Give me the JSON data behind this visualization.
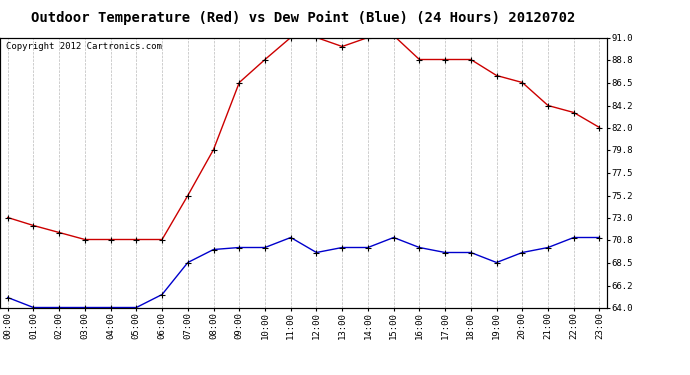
{
  "title": "Outdoor Temperature (Red) vs Dew Point (Blue) (24 Hours) 20120702",
  "copyright_text": "Copyright 2012 Cartronics.com",
  "hours": [
    "00:00",
    "01:00",
    "02:00",
    "03:00",
    "04:00",
    "05:00",
    "06:00",
    "07:00",
    "08:00",
    "09:00",
    "10:00",
    "11:00",
    "12:00",
    "13:00",
    "14:00",
    "15:00",
    "16:00",
    "17:00",
    "18:00",
    "19:00",
    "20:00",
    "21:00",
    "22:00",
    "23:00"
  ],
  "temp_red": [
    73.0,
    72.2,
    71.5,
    70.8,
    70.8,
    70.8,
    70.8,
    75.2,
    79.8,
    86.5,
    88.8,
    91.0,
    91.0,
    90.1,
    91.0,
    91.2,
    88.8,
    88.8,
    88.8,
    87.2,
    86.5,
    84.2,
    83.5,
    82.0
  ],
  "dew_blue": [
    65.0,
    64.0,
    64.0,
    64.0,
    64.0,
    64.0,
    65.3,
    68.5,
    69.8,
    70.0,
    70.0,
    71.0,
    69.5,
    70.0,
    70.0,
    71.0,
    70.0,
    69.5,
    69.5,
    68.5,
    69.5,
    70.0,
    71.0,
    71.0
  ],
  "ylim": [
    64.0,
    91.0
  ],
  "yticks": [
    64.0,
    66.2,
    68.5,
    70.8,
    73.0,
    75.2,
    77.5,
    79.8,
    82.0,
    84.2,
    86.5,
    88.8,
    91.0
  ],
  "red_color": "#cc0000",
  "blue_color": "#0000cc",
  "bg_color": "#ffffff",
  "grid_color": "#bbbbbb",
  "title_fontsize": 10,
  "copyright_fontsize": 6.5
}
